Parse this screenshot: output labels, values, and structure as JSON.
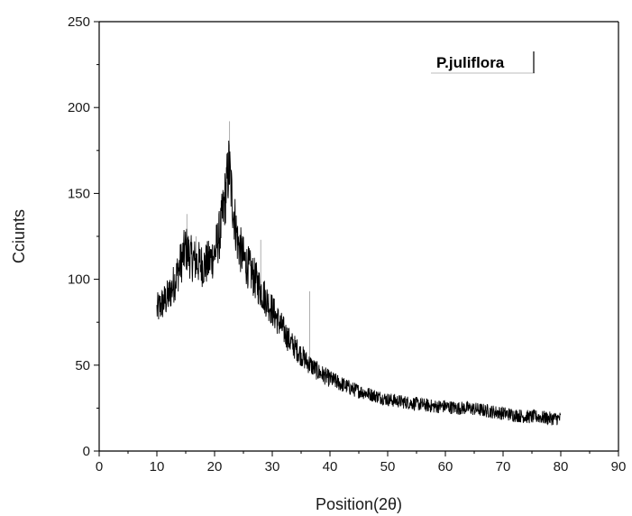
{
  "chart_data": {
    "type": "line",
    "title": "",
    "xlabel": "Position(2θ)",
    "ylabel": "Cciunts",
    "xlim": [
      0,
      90
    ],
    "ylim": [
      0,
      250
    ],
    "x_ticks": [
      0,
      10,
      20,
      30,
      40,
      50,
      60,
      70,
      80,
      90
    ],
    "y_ticks": [
      0,
      50,
      100,
      150,
      200,
      250
    ],
    "grid": false,
    "legend_position": "top-right",
    "series": [
      {
        "name": "P.juliflora",
        "color": "#000000",
        "x": [
          10,
          11,
          12,
          13,
          14,
          15,
          16,
          17,
          18,
          19,
          20,
          21,
          22,
          22.5,
          23,
          24,
          25,
          26,
          27,
          28,
          29,
          30,
          31,
          32,
          33,
          34,
          35,
          36,
          37,
          38,
          39,
          40,
          42,
          44,
          46,
          48,
          50,
          52,
          54,
          56,
          58,
          60,
          62,
          64,
          66,
          68,
          70,
          72,
          74,
          76,
          78,
          80
        ],
        "y": [
          82,
          86,
          90,
          98,
          108,
          118,
          112,
          110,
          108,
          110,
          115,
          128,
          152,
          166,
          148,
          122,
          112,
          106,
          100,
          94,
          88,
          82,
          76,
          70,
          64,
          60,
          56,
          52,
          49,
          46,
          44,
          42,
          39,
          36,
          34,
          32,
          30,
          29,
          28,
          27,
          26,
          26,
          25,
          25,
          24,
          23,
          22,
          21,
          20,
          20,
          19,
          19
        ]
      }
    ]
  }
}
